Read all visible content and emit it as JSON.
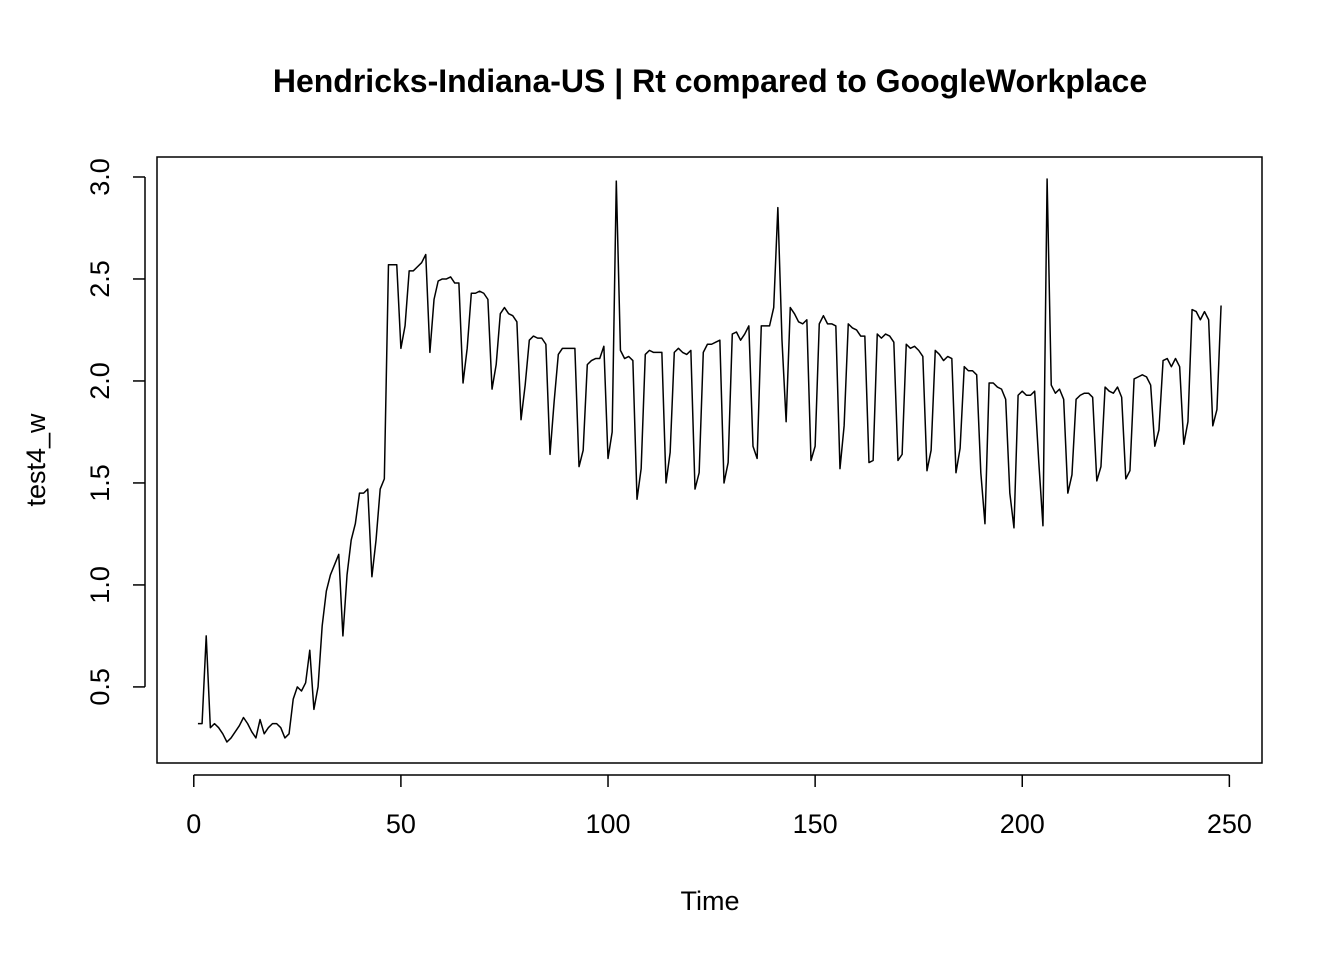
{
  "chart_data": {
    "type": "line",
    "title": "Hendricks-Indiana-US | Rt compared to GoogleWorkplace",
    "x_label": "Time",
    "y_label": "test4_w",
    "xlim": [
      -8.88,
      257.88
    ],
    "ylim": [
      0.127,
      3.098
    ],
    "xticks": [
      0,
      50,
      100,
      150,
      200,
      250
    ],
    "yticks": [
      {
        "value": 0.5,
        "label": "0.5"
      },
      {
        "value": 1,
        "label": "1.0"
      },
      {
        "value": 1.5,
        "label": "1.5"
      },
      {
        "value": 2,
        "label": "2.0"
      },
      {
        "value": 2.5,
        "label": "2.5"
      },
      {
        "value": 3,
        "label": "3.0"
      }
    ],
    "color": "#000000",
    "x": [
      1,
      2,
      3,
      4,
      5,
      6,
      7,
      8,
      9,
      10,
      11,
      12,
      13,
      14,
      15,
      16,
      17,
      18,
      19,
      20,
      21,
      22,
      23,
      24,
      25,
      26,
      27,
      28,
      29,
      30,
      31,
      32,
      33,
      34,
      35,
      36,
      37,
      38,
      39,
      40,
      41,
      42,
      43,
      44,
      45,
      46,
      47,
      48,
      49,
      50,
      51,
      52,
      53,
      54,
      55,
      56,
      57,
      58,
      59,
      60,
      61,
      62,
      63,
      64,
      65,
      66,
      67,
      68,
      69,
      70,
      71,
      72,
      73,
      74,
      75,
      76,
      77,
      78,
      79,
      80,
      81,
      82,
      83,
      84,
      85,
      86,
      87,
      88,
      89,
      90,
      91,
      92,
      93,
      94,
      95,
      96,
      97,
      98,
      99,
      100,
      101,
      102,
      103,
      104,
      105,
      106,
      107,
      108,
      109,
      110,
      111,
      112,
      113,
      114,
      115,
      116,
      117,
      118,
      119,
      120,
      121,
      122,
      123,
      124,
      125,
      126,
      127,
      128,
      129,
      130,
      131,
      132,
      133,
      134,
      135,
      136,
      137,
      138,
      139,
      140,
      141,
      142,
      143,
      144,
      145,
      146,
      147,
      148,
      149,
      150,
      151,
      152,
      153,
      154,
      155,
      156,
      157,
      158,
      159,
      160,
      161,
      162,
      163,
      164,
      165,
      166,
      167,
      168,
      169,
      170,
      171,
      172,
      173,
      174,
      175,
      176,
      177,
      178,
      179,
      180,
      181,
      182,
      183,
      184,
      185,
      186,
      187,
      188,
      189,
      190,
      191,
      192,
      193,
      194,
      195,
      196,
      197,
      198,
      199,
      200,
      201,
      202,
      203,
      204,
      205,
      206,
      207,
      208,
      209,
      210,
      211,
      212,
      213,
      214,
      215,
      216,
      217,
      218,
      219,
      220,
      221,
      222,
      223,
      224,
      225,
      226,
      227,
      228,
      229,
      230,
      231,
      232,
      233,
      234,
      235,
      236,
      237,
      238,
      239,
      240,
      241,
      242,
      243,
      244,
      245,
      246,
      247,
      248
    ],
    "values": [
      0.32,
      0.32,
      0.75,
      0.3,
      0.32,
      0.3,
      0.27,
      0.23,
      0.25,
      0.28,
      0.31,
      0.35,
      0.32,
      0.28,
      0.25,
      0.34,
      0.27,
      0.3,
      0.32,
      0.32,
      0.3,
      0.25,
      0.27,
      0.44,
      0.5,
      0.48,
      0.52,
      0.68,
      0.39,
      0.5,
      0.8,
      0.97,
      1.05,
      1.1,
      1.15,
      0.75,
      1.05,
      1.22,
      1.3,
      1.45,
      1.45,
      1.47,
      1.04,
      1.22,
      1.47,
      1.52,
      2.57,
      2.57,
      2.57,
      2.16,
      2.27,
      2.54,
      2.54,
      2.56,
      2.58,
      2.62,
      2.14,
      2.4,
      2.49,
      2.5,
      2.5,
      2.51,
      2.48,
      2.48,
      1.99,
      2.16,
      2.43,
      2.43,
      2.44,
      2.43,
      2.4,
      1.96,
      2.08,
      2.33,
      2.36,
      2.33,
      2.32,
      2.29,
      1.81,
      1.98,
      2.2,
      2.22,
      2.21,
      2.21,
      2.18,
      1.64,
      1.9,
      2.13,
      2.16,
      2.16,
      2.16,
      2.16,
      1.58,
      1.66,
      2.08,
      2.1,
      2.11,
      2.11,
      2.17,
      1.62,
      1.75,
      2.98,
      2.15,
      2.11,
      2.12,
      2.1,
      1.42,
      1.57,
      2.13,
      2.15,
      2.14,
      2.14,
      2.14,
      1.5,
      1.65,
      2.14,
      2.16,
      2.14,
      2.13,
      2.15,
      1.47,
      1.55,
      2.14,
      2.18,
      2.18,
      2.19,
      2.2,
      1.5,
      1.6,
      2.23,
      2.24,
      2.2,
      2.23,
      2.27,
      1.68,
      1.62,
      2.27,
      2.27,
      2.27,
      2.36,
      2.85,
      2.2,
      1.8,
      2.36,
      2.33,
      2.29,
      2.28,
      2.3,
      1.61,
      1.68,
      2.28,
      2.32,
      2.28,
      2.28,
      2.27,
      1.57,
      1.78,
      2.28,
      2.26,
      2.25,
      2.22,
      2.22,
      1.6,
      1.61,
      2.23,
      2.21,
      2.23,
      2.22,
      2.19,
      1.61,
      1.64,
      2.18,
      2.16,
      2.17,
      2.15,
      2.12,
      1.56,
      1.66,
      2.15,
      2.13,
      2.1,
      2.12,
      2.11,
      1.55,
      1.67,
      2.07,
      2.05,
      2.05,
      2.03,
      1.55,
      1.3,
      1.99,
      1.99,
      1.97,
      1.96,
      1.91,
      1.45,
      1.28,
      1.93,
      1.95,
      1.93,
      1.93,
      1.95,
      1.6,
      1.29,
      2.99,
      1.98,
      1.94,
      1.96,
      1.91,
      1.45,
      1.54,
      1.91,
      1.93,
      1.94,
      1.94,
      1.92,
      1.51,
      1.58,
      1.97,
      1.95,
      1.94,
      1.97,
      1.92,
      1.52,
      1.56,
      2.01,
      2.02,
      2.03,
      2.02,
      1.98,
      1.68,
      1.76,
      2.1,
      2.11,
      2.07,
      2.11,
      2.07,
      1.69,
      1.8,
      2.35,
      2.34,
      2.3,
      2.34,
      2.3,
      1.78,
      1.86,
      2.37
    ]
  }
}
